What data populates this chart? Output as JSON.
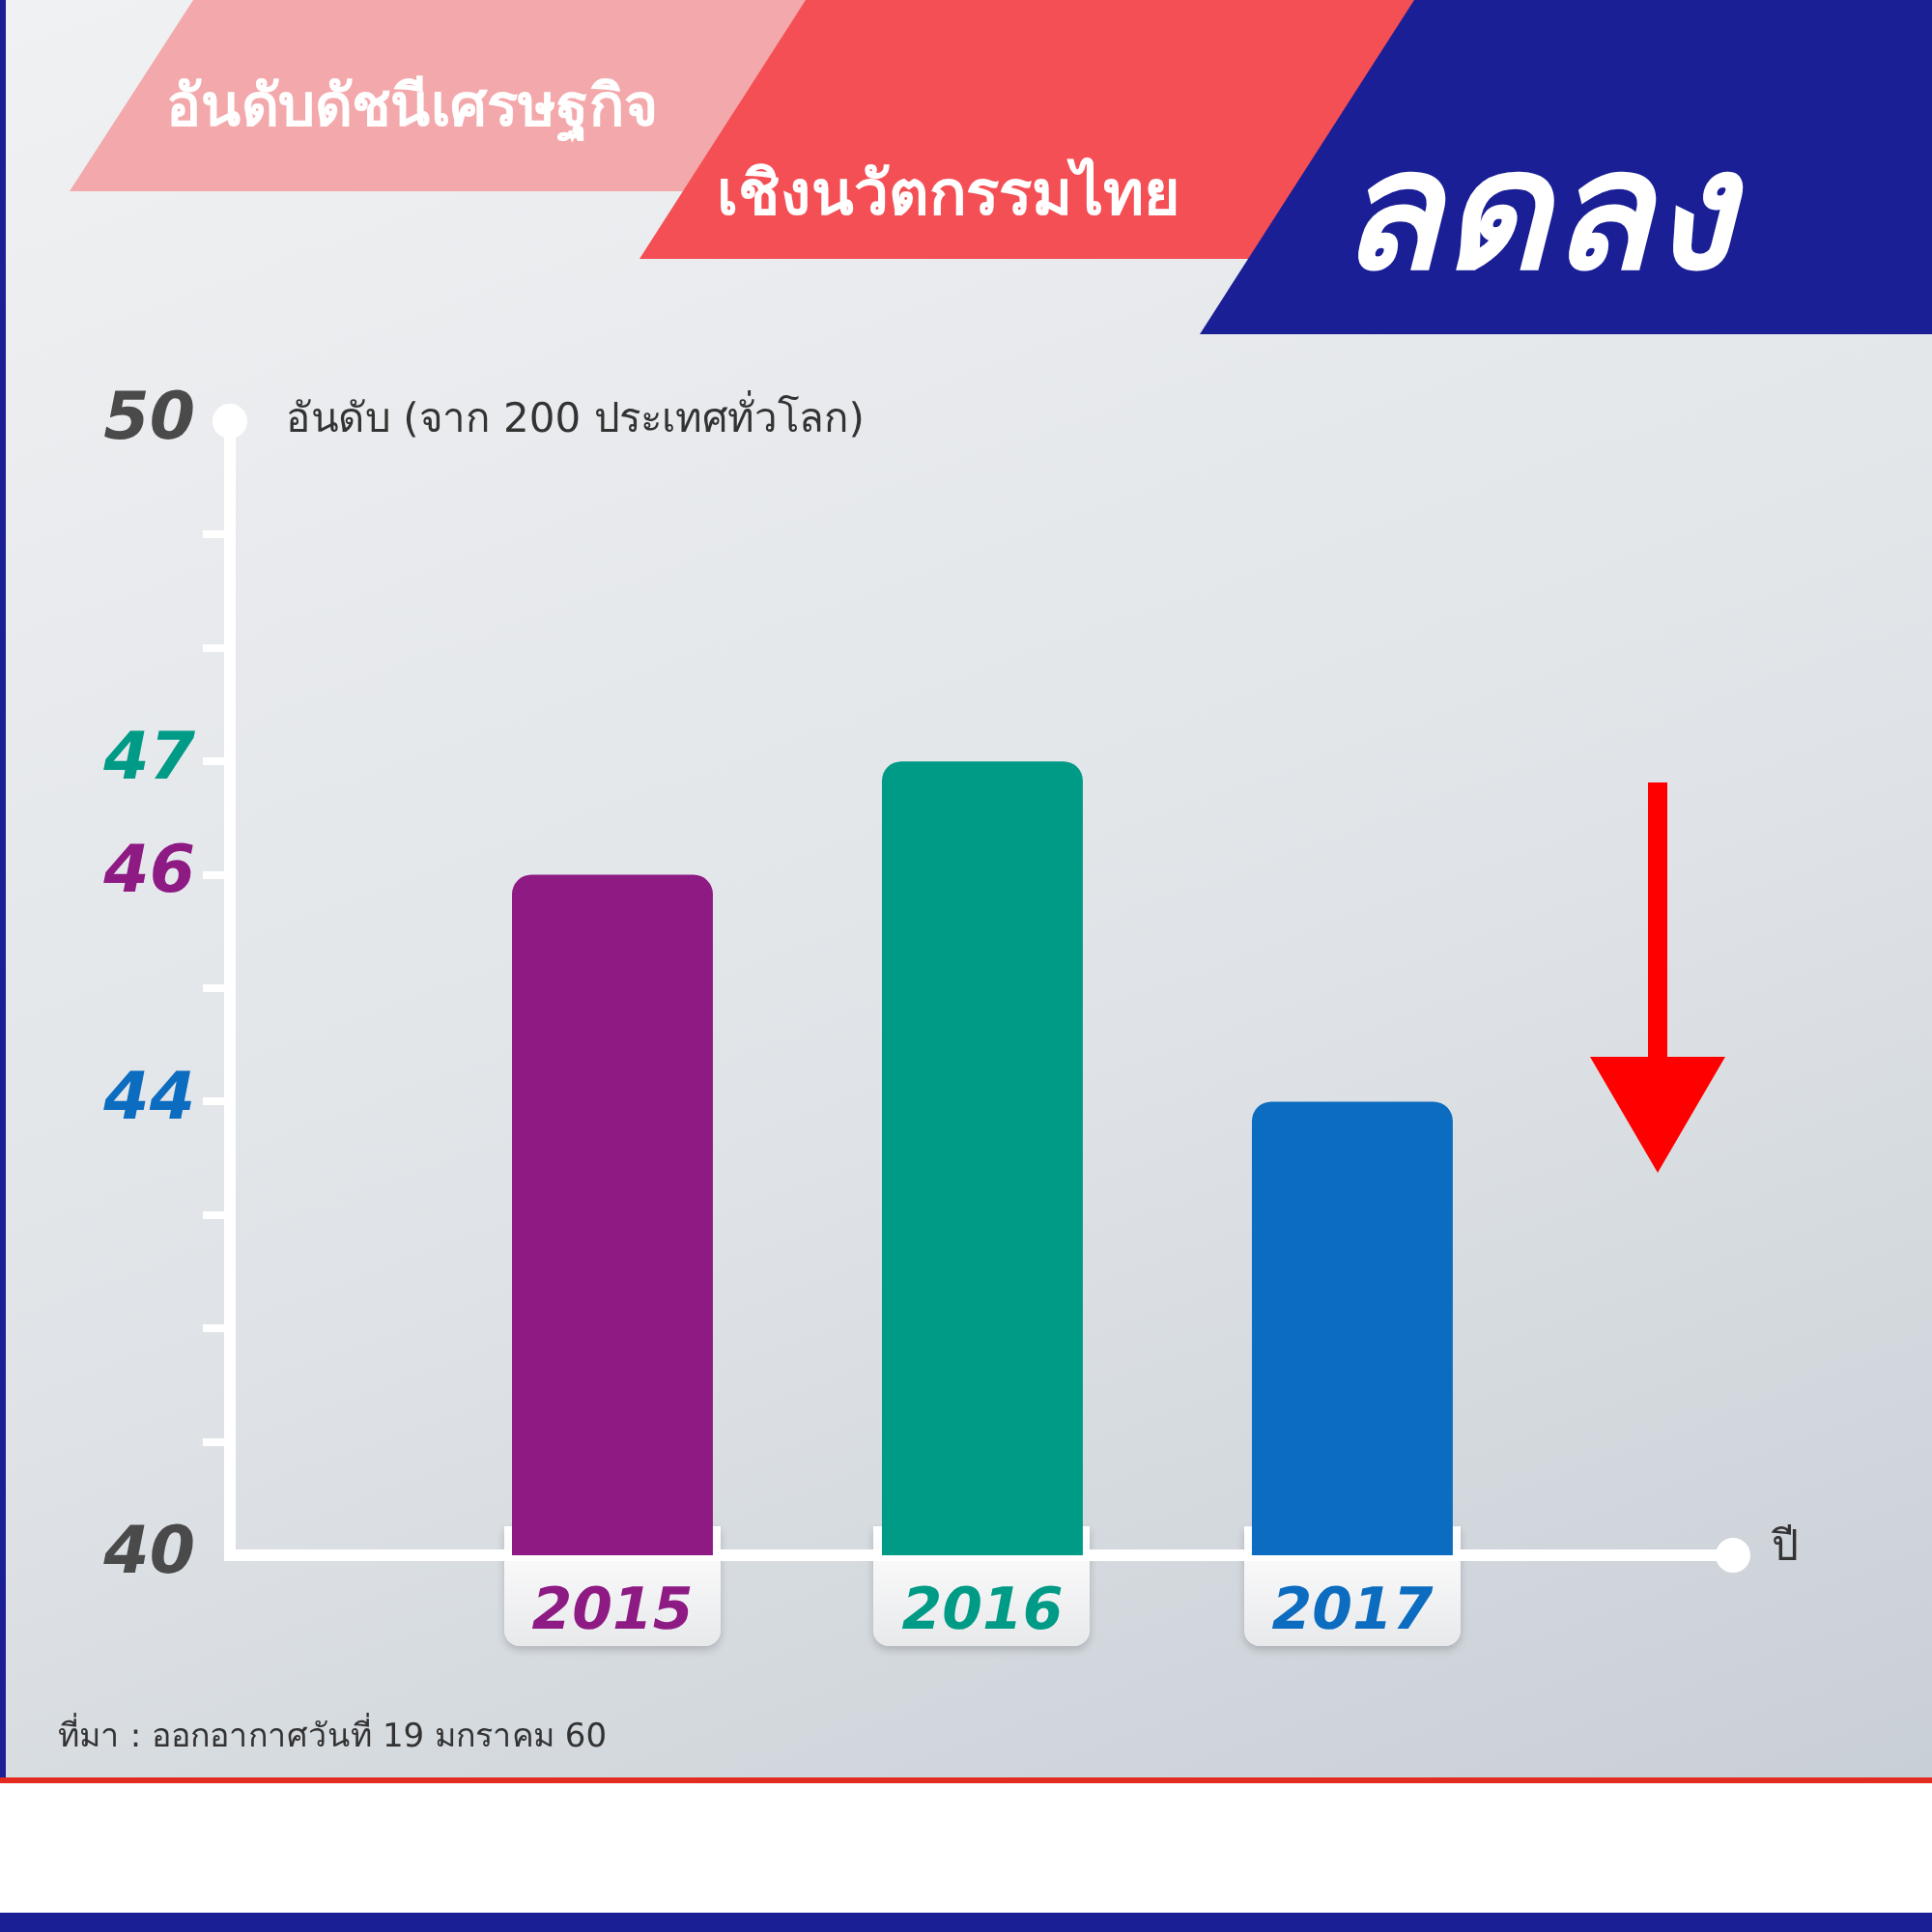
{
  "chart_data": {
    "type": "bar",
    "title": "อันดับดัชนีเศรษฐกิจ เชิงนวัตกรรมไทย",
    "subtitle": "ลดลง",
    "xlabel": "ปี",
    "ylabel": "อันดับ (จาก 200 ประเทศทั่วโลก)",
    "categories": [
      "2015",
      "2016",
      "2017"
    ],
    "values": [
      46,
      47,
      44
    ],
    "colors": [
      "#8e1a84",
      "#009b86",
      "#0b6cc0"
    ],
    "ylim": [
      40,
      50
    ],
    "yticks": [
      40,
      {
        "value": 41,
        "label": null
      },
      {
        "value": 42,
        "label": null
      },
      {
        "value": 43,
        "label": null
      },
      44,
      {
        "value": 45,
        "label": null
      },
      46,
      47,
      {
        "value": 48,
        "label": null
      },
      {
        "value": 49,
        "label": null
      },
      50
    ],
    "annotations": [
      "ที่มา : ออกอากาศวันที่ 19 มกราคม 60"
    ]
  }
}
